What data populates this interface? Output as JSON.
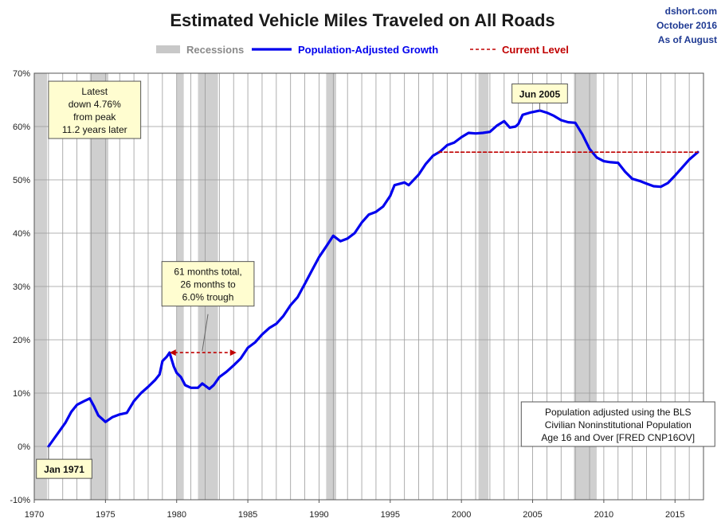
{
  "chart_data": {
    "type": "line",
    "title": "Estimated Vehicle Miles Traveled on All Roads",
    "source": [
      "dshort.com",
      "October 2016",
      "As of August"
    ],
    "legend": {
      "position": "top",
      "items": [
        {
          "label": "Recessions",
          "color": "#c8c8c8",
          "kind": "band"
        },
        {
          "label": "Population-Adjusted Growth",
          "color": "#0000ee",
          "kind": "line"
        },
        {
          "label": "Current Level",
          "color": "#c00000",
          "kind": "dash"
        }
      ]
    },
    "x_range": [
      1970,
      2017
    ],
    "y_range": [
      -10,
      70
    ],
    "x_ticks": [
      {
        "value": 1970,
        "label": "1970"
      },
      {
        "value": 1975,
        "label": "1975"
      },
      {
        "value": 1980,
        "label": "1980"
      },
      {
        "value": 1985,
        "label": "1985"
      },
      {
        "value": 1990,
        "label": "1990"
      },
      {
        "value": 1995,
        "label": "1995"
      },
      {
        "value": 2000,
        "label": "2000"
      },
      {
        "value": 2005,
        "label": "2005"
      },
      {
        "value": 2010,
        "label": "2010"
      },
      {
        "value": 2015,
        "label": "2015"
      }
    ],
    "y_ticks": [
      {
        "value": -10,
        "label": "-10%"
      },
      {
        "value": 0,
        "label": "0%"
      },
      {
        "value": 10,
        "label": "10%"
      },
      {
        "value": 20,
        "label": "20%"
      },
      {
        "value": 30,
        "label": "30%"
      },
      {
        "value": 40,
        "label": "40%"
      },
      {
        "value": 50,
        "label": "50%"
      },
      {
        "value": 60,
        "label": "60%"
      },
      {
        "value": 70,
        "label": "70%"
      }
    ],
    "grid": true,
    "recessions": [
      [
        1970.0,
        1970.9
      ],
      [
        1973.9,
        1975.2
      ],
      [
        1980.0,
        1980.5
      ],
      [
        1981.5,
        1982.9
      ],
      [
        1990.5,
        1991.2
      ],
      [
        2001.2,
        2001.9
      ],
      [
        2007.9,
        2009.5
      ]
    ],
    "series": [
      {
        "name": "Population-Adjusted Growth",
        "color": "#0000ee",
        "points": [
          [
            1971.0,
            0
          ],
          [
            1971.4,
            1.5
          ],
          [
            1971.8,
            3.0
          ],
          [
            1972.2,
            4.5
          ],
          [
            1972.6,
            6.5
          ],
          [
            1973.0,
            7.8
          ],
          [
            1973.5,
            8.5
          ],
          [
            1973.9,
            9.0
          ],
          [
            1974.2,
            7.5
          ],
          [
            1974.5,
            5.8
          ],
          [
            1975.0,
            4.6
          ],
          [
            1975.5,
            5.5
          ],
          [
            1976.0,
            6.0
          ],
          [
            1976.5,
            6.3
          ],
          [
            1977.0,
            8.5
          ],
          [
            1977.5,
            10.0
          ],
          [
            1978.0,
            11.2
          ],
          [
            1978.5,
            12.5
          ],
          [
            1978.8,
            13.5
          ],
          [
            1979.0,
            16.0
          ],
          [
            1979.3,
            16.8
          ],
          [
            1979.5,
            17.6
          ],
          [
            1979.8,
            15.0
          ],
          [
            1980.0,
            13.8
          ],
          [
            1980.3,
            13.0
          ],
          [
            1980.6,
            11.5
          ],
          [
            1981.0,
            11.0
          ],
          [
            1981.5,
            11.0
          ],
          [
            1981.8,
            11.8
          ],
          [
            1982.3,
            10.8
          ],
          [
            1982.6,
            11.5
          ],
          [
            1983.0,
            13.0
          ],
          [
            1983.5,
            14.0
          ],
          [
            1984.0,
            15.2
          ],
          [
            1984.5,
            16.5
          ],
          [
            1985.0,
            18.5
          ],
          [
            1985.5,
            19.5
          ],
          [
            1986.0,
            21.0
          ],
          [
            1986.5,
            22.2
          ],
          [
            1987.0,
            23.0
          ],
          [
            1987.5,
            24.5
          ],
          [
            1988.0,
            26.5
          ],
          [
            1988.5,
            28.0
          ],
          [
            1989.0,
            30.5
          ],
          [
            1989.5,
            33.0
          ],
          [
            1990.0,
            35.5
          ],
          [
            1990.5,
            37.5
          ],
          [
            1991.0,
            39.5
          ],
          [
            1991.5,
            38.5
          ],
          [
            1992.0,
            39.0
          ],
          [
            1992.5,
            40.0
          ],
          [
            1993.0,
            42.0
          ],
          [
            1993.5,
            43.5
          ],
          [
            1994.0,
            44.0
          ],
          [
            1994.5,
            45.0
          ],
          [
            1995.0,
            47.0
          ],
          [
            1995.3,
            49.0
          ],
          [
            1996.0,
            49.5
          ],
          [
            1996.3,
            49.0
          ],
          [
            1997.0,
            51.0
          ],
          [
            1997.5,
            53.0
          ],
          [
            1998.0,
            54.5
          ],
          [
            1998.5,
            55.3
          ],
          [
            1999.0,
            56.5
          ],
          [
            1999.5,
            57.0
          ],
          [
            2000.0,
            58.0
          ],
          [
            2000.5,
            58.8
          ],
          [
            2001.0,
            58.7
          ],
          [
            2001.5,
            58.8
          ],
          [
            2002.0,
            59.0
          ],
          [
            2002.5,
            60.2
          ],
          [
            2003.0,
            61.0
          ],
          [
            2003.4,
            59.8
          ],
          [
            2003.8,
            60.0
          ],
          [
            2004.0,
            60.5
          ],
          [
            2004.3,
            62.2
          ],
          [
            2004.8,
            62.6
          ],
          [
            2005.5,
            63.0
          ],
          [
            2006.0,
            62.6
          ],
          [
            2006.5,
            62.0
          ],
          [
            2007.0,
            61.2
          ],
          [
            2007.5,
            60.8
          ],
          [
            2008.0,
            60.7
          ],
          [
            2008.5,
            58.5
          ],
          [
            2009.0,
            55.8
          ],
          [
            2009.5,
            54.2
          ],
          [
            2010.0,
            53.5
          ],
          [
            2010.5,
            53.3
          ],
          [
            2011.0,
            53.2
          ],
          [
            2011.5,
            51.5
          ],
          [
            2012.0,
            50.2
          ],
          [
            2012.5,
            49.8
          ],
          [
            2013.0,
            49.3
          ],
          [
            2013.5,
            48.8
          ],
          [
            2014.0,
            48.7
          ],
          [
            2014.5,
            49.4
          ],
          [
            2015.0,
            50.8
          ],
          [
            2015.5,
            52.3
          ],
          [
            2016.0,
            53.8
          ],
          [
            2016.6,
            55.2
          ]
        ]
      },
      {
        "name": "Current Level",
        "color": "#c00000",
        "dashed": true,
        "points": [
          [
            1998.4,
            55.2
          ],
          [
            2016.6,
            55.2
          ]
        ]
      }
    ],
    "annotations": [
      {
        "kind": "box",
        "lines": [
          "Latest",
          "down 4.76%",
          "from peak",
          "11.2 years later"
        ],
        "anchor": [
          1971.0,
          68.5
        ],
        "fill": "#fffdd0"
      },
      {
        "kind": "callout",
        "lines": [
          "Jun 2005"
        ],
        "anchor": [
          2005.5,
          66.2
        ],
        "target": [
          2005.5,
          63.0
        ],
        "fill": "#fffdd0",
        "bold": true
      },
      {
        "kind": "callout",
        "lines": [
          "Jan 1971"
        ],
        "anchor": [
          1972.1,
          -4.2
        ],
        "target": [
          1971.0,
          0
        ],
        "fill": "#fffdd0",
        "bold": true
      },
      {
        "kind": "box",
        "lines": [
          "61 months total,",
          "26 months to",
          "6.0% trough"
        ],
        "anchor": [
          1982.2,
          30.5
        ],
        "fill": "#fffdd0"
      },
      {
        "kind": "arrow",
        "from": [
          1979.5,
          17.6
        ],
        "to": [
          1984.2,
          17.6
        ],
        "color": "#c00000"
      },
      {
        "kind": "box",
        "lines": [
          "Population adjusted using the BLS",
          "Civilian Noninstitutional Population",
          "Age 16 and Over  [FRED CNP16OV]"
        ],
        "anchor": [
          2011.0,
          0.0
        ],
        "fill": "#ffffff"
      }
    ]
  }
}
